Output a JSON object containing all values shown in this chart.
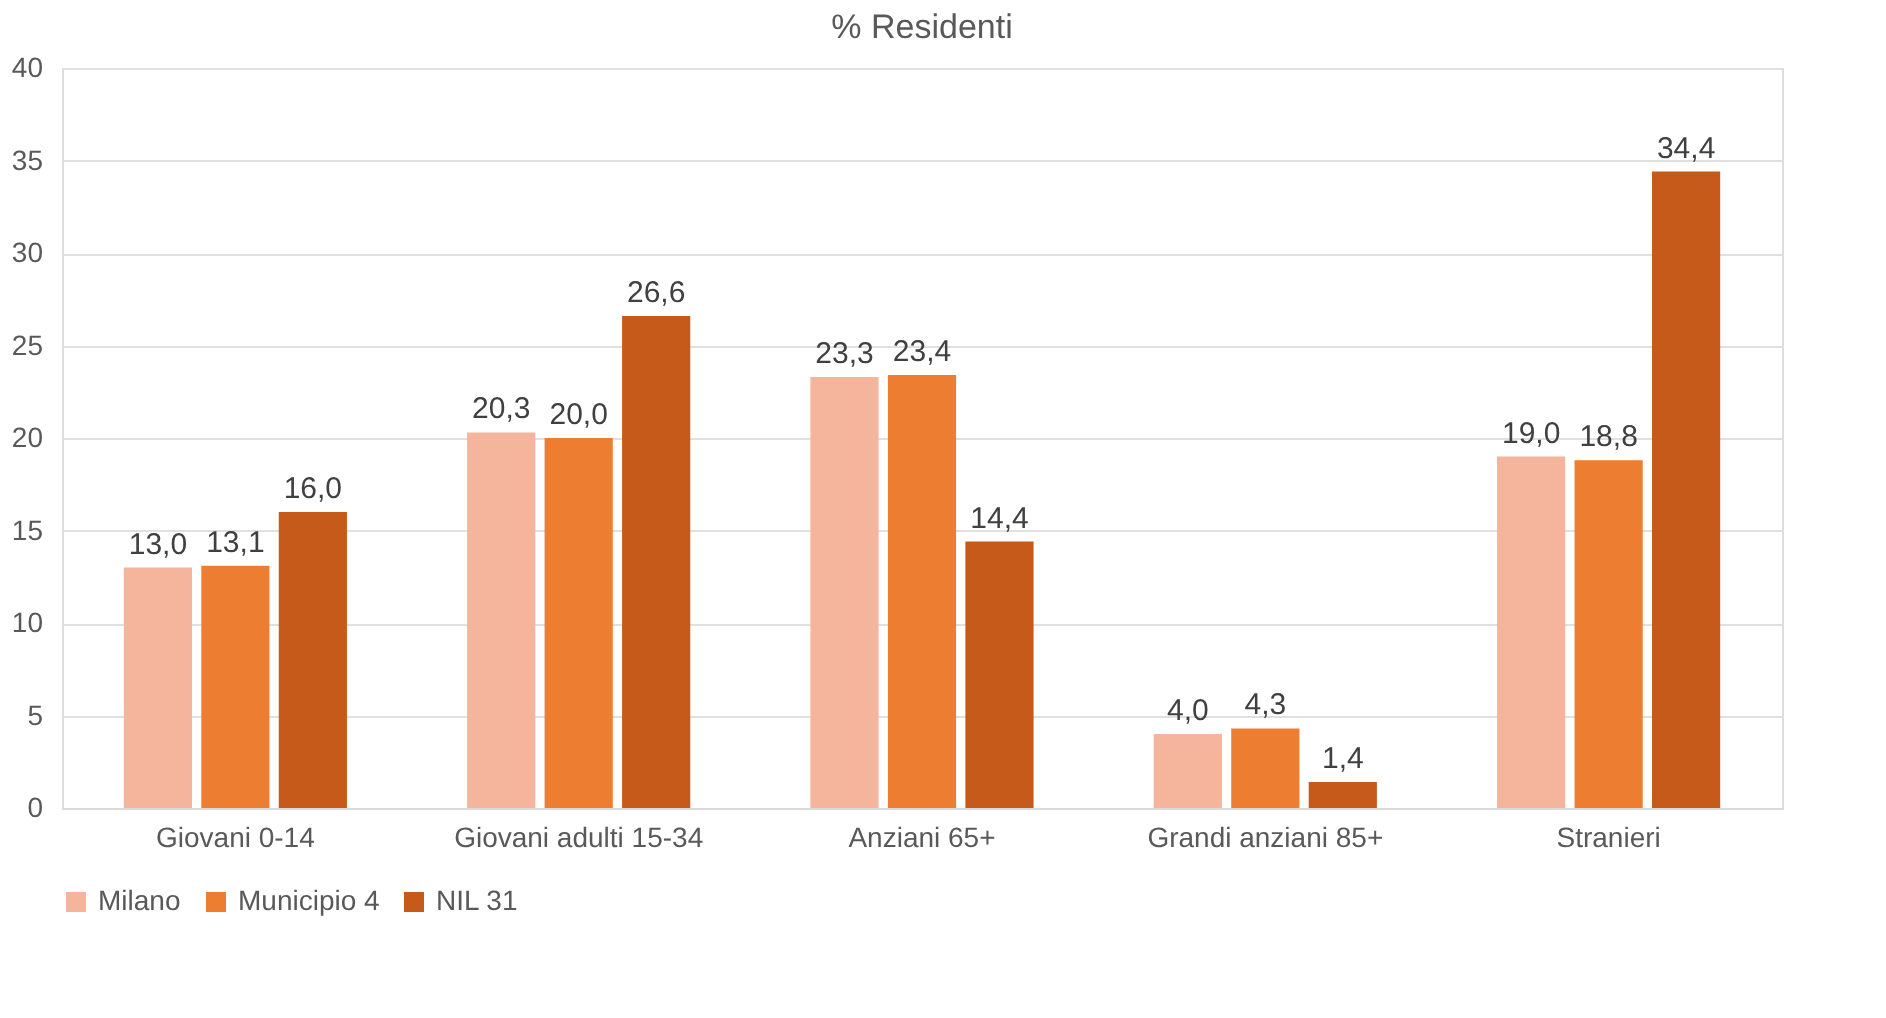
{
  "chart_data": {
    "type": "bar",
    "title": "% Residenti",
    "categories": [
      "Giovani 0-14",
      "Giovani adulti 15-34",
      "Anziani 65+",
      "Grandi anziani 85+",
      "Stranieri"
    ],
    "series": [
      {
        "name": "Milano",
        "color": "#f4b59c",
        "values": [
          13.0,
          20.3,
          23.3,
          4.0,
          19.0
        ],
        "value_labels": [
          "13,0",
          "20,3",
          "23,3",
          "4,0",
          "19,0"
        ]
      },
      {
        "name": "Municipio 4",
        "color": "#ed7d31",
        "values": [
          13.1,
          20.0,
          23.4,
          4.3,
          18.8
        ],
        "value_labels": [
          "13,1",
          "20,0",
          "23,4",
          "4,3",
          "18,8"
        ]
      },
      {
        "name": "NIL 31",
        "color": "#c55a1b",
        "values": [
          16.0,
          26.6,
          14.4,
          1.4,
          34.4
        ],
        "value_labels": [
          "16,0",
          "26,6",
          "14,4",
          "1,4",
          "34,4"
        ]
      }
    ],
    "ylim": [
      0,
      40
    ],
    "yticks": [
      0,
      5,
      10,
      15,
      20,
      25,
      30,
      35,
      40
    ],
    "grid": "y",
    "legend": "bottom"
  }
}
